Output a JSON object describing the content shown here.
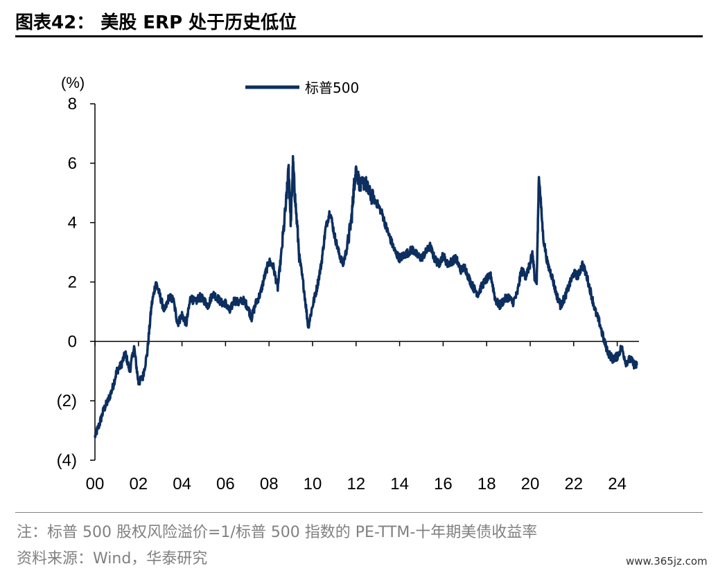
{
  "header": {
    "title": "图表42：  美股 ERP 处于历史低位"
  },
  "footer": {
    "note": "注：标普 500 股权风险溢价=1/标普 500 指数的 PE-TTM-十年期美债收益率",
    "source": "资料来源：Wind，华泰研究",
    "watermark": "www.365jz.com"
  },
  "colors": {
    "series": "#0d2f5f",
    "axis": "#000000"
  },
  "chart_data": {
    "type": "line",
    "title": "",
    "xlabel": "",
    "ylabel": "(%)",
    "ylim": [
      -4,
      8
    ],
    "xlim": [
      2000,
      2025
    ],
    "y_ticks": [
      8,
      6,
      4,
      2,
      0,
      -2,
      -4
    ],
    "y_tick_labels": [
      "8",
      "6",
      "4",
      "2",
      "0",
      "(2)",
      "(4)"
    ],
    "x_ticks": [
      2000,
      2002,
      2004,
      2006,
      2008,
      2010,
      2012,
      2014,
      2016,
      2018,
      2020,
      2022,
      2024
    ],
    "x_tick_labels": [
      "00",
      "02",
      "04",
      "06",
      "08",
      "10",
      "12",
      "14",
      "16",
      "18",
      "20",
      "22",
      "24"
    ],
    "legend_position": "top-center",
    "grid": false,
    "series": [
      {
        "name": "标普500",
        "x": [
          2000.0,
          2000.2,
          2000.4,
          2000.6,
          2000.8,
          2001.0,
          2001.2,
          2001.4,
          2001.6,
          2001.8,
          2002.0,
          2002.2,
          2002.4,
          2002.6,
          2002.8,
          2003.0,
          2003.2,
          2003.4,
          2003.6,
          2003.8,
          2004.0,
          2004.2,
          2004.4,
          2004.6,
          2004.8,
          2005.0,
          2005.2,
          2005.4,
          2005.6,
          2005.8,
          2006.0,
          2006.2,
          2006.4,
          2006.6,
          2006.8,
          2007.0,
          2007.2,
          2007.4,
          2007.6,
          2007.8,
          2008.0,
          2008.2,
          2008.4,
          2008.6,
          2008.8,
          2008.9,
          2009.0,
          2009.1,
          2009.2,
          2009.4,
          2009.6,
          2009.8,
          2010.0,
          2010.2,
          2010.4,
          2010.6,
          2010.8,
          2011.0,
          2011.2,
          2011.4,
          2011.6,
          2011.8,
          2011.9,
          2012.0,
          2012.2,
          2012.4,
          2012.6,
          2012.8,
          2013.0,
          2013.2,
          2013.4,
          2013.6,
          2013.8,
          2014.0,
          2014.2,
          2014.4,
          2014.6,
          2014.8,
          2015.0,
          2015.2,
          2015.4,
          2015.6,
          2015.8,
          2016.0,
          2016.2,
          2016.4,
          2016.6,
          2016.8,
          2017.0,
          2017.2,
          2017.4,
          2017.6,
          2017.8,
          2018.0,
          2018.2,
          2018.4,
          2018.6,
          2018.8,
          2019.0,
          2019.2,
          2019.4,
          2019.6,
          2019.8,
          2020.0,
          2020.1,
          2020.2,
          2020.3,
          2020.4,
          2020.6,
          2020.8,
          2021.0,
          2021.2,
          2021.4,
          2021.6,
          2021.8,
          2022.0,
          2022.2,
          2022.4,
          2022.6,
          2022.8,
          2023.0,
          2023.2,
          2023.4,
          2023.6,
          2023.8,
          2024.0,
          2024.2,
          2024.4,
          2024.6,
          2024.8,
          2024.9
        ],
        "values": [
          -3.2,
          -2.8,
          -2.3,
          -2.0,
          -1.6,
          -1.0,
          -0.8,
          -0.4,
          -1.0,
          -0.2,
          -1.4,
          -1.2,
          -0.4,
          1.2,
          2.0,
          1.5,
          1.0,
          1.5,
          1.4,
          0.6,
          0.9,
          0.6,
          1.5,
          1.3,
          1.5,
          1.4,
          1.2,
          1.6,
          1.5,
          1.3,
          1.3,
          1.0,
          1.4,
          1.3,
          1.4,
          1.2,
          0.8,
          1.3,
          1.6,
          2.2,
          2.7,
          2.5,
          1.8,
          3.2,
          4.8,
          5.8,
          4.0,
          6.0,
          4.8,
          2.8,
          1.8,
          0.5,
          1.2,
          1.8,
          2.6,
          3.8,
          4.4,
          3.6,
          3.0,
          2.6,
          3.2,
          4.2,
          5.2,
          5.8,
          5.2,
          5.4,
          5.0,
          4.8,
          4.6,
          4.3,
          3.8,
          3.4,
          3.0,
          2.8,
          2.9,
          3.0,
          3.1,
          2.9,
          2.8,
          3.0,
          3.2,
          2.8,
          2.6,
          2.9,
          2.6,
          2.7,
          2.8,
          2.4,
          2.5,
          2.1,
          1.8,
          1.6,
          1.9,
          2.1,
          2.2,
          1.4,
          1.2,
          1.4,
          1.5,
          1.3,
          1.6,
          2.4,
          2.2,
          2.6,
          3.0,
          2.2,
          2.0,
          5.6,
          3.5,
          2.6,
          2.2,
          1.6,
          1.2,
          1.5,
          1.9,
          2.3,
          2.2,
          2.6,
          2.2,
          1.6,
          1.0,
          0.6,
          0.0,
          -0.4,
          -0.6,
          -0.5,
          -0.2,
          -0.7,
          -0.6,
          -0.8,
          -0.8
        ]
      }
    ]
  }
}
